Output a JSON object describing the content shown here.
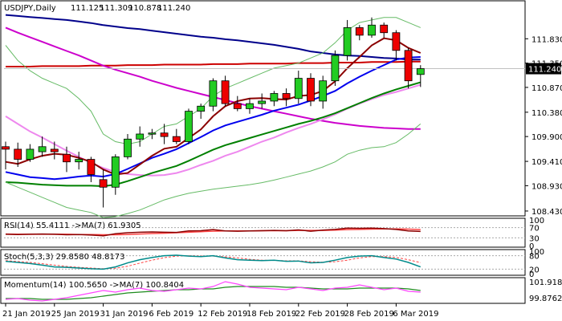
{
  "chart_data": {
    "type": "candlestick",
    "symbol_label": "USDJPY,Daily",
    "ohlc_label": [
      "111.125",
      "111.309",
      "110.878",
      "111.240"
    ],
    "current_price": 111.24,
    "current_price_label": "111.240",
    "price_axis": {
      "ylim": [
        108.35,
        112.5
      ],
      "ticks": [
        "111.830",
        "111.350",
        "110.870",
        "110.380",
        "109.900",
        "109.410",
        "108.930",
        "108.430"
      ]
    },
    "x_labels": [
      "21 Jan 2019",
      "25 Jan 2019",
      "31 Jan 2019",
      "6 Feb 2019",
      "12 Feb 2019",
      "18 Feb 2019",
      "22 Feb 2019",
      "28 Feb 2019",
      "6 Mar 2019"
    ],
    "x_label_bar_index": [
      0,
      4,
      8,
      12,
      16,
      20,
      24,
      28,
      32
    ],
    "candles": [
      {
        "o": 109.7,
        "h": 109.8,
        "l": 109.25,
        "c": 109.65
      },
      {
        "o": 109.65,
        "h": 109.78,
        "l": 109.3,
        "c": 109.45
      },
      {
        "o": 109.45,
        "h": 109.75,
        "l": 109.4,
        "c": 109.65
      },
      {
        "o": 109.6,
        "h": 109.9,
        "l": 109.5,
        "c": 109.7
      },
      {
        "o": 109.65,
        "h": 109.8,
        "l": 109.45,
        "c": 109.6
      },
      {
        "o": 109.55,
        "h": 109.7,
        "l": 109.2,
        "c": 109.4
      },
      {
        "o": 109.4,
        "h": 109.6,
        "l": 109.25,
        "c": 109.45
      },
      {
        "o": 109.45,
        "h": 109.5,
        "l": 109.0,
        "c": 109.15
      },
      {
        "o": 109.05,
        "h": 109.25,
        "l": 108.5,
        "c": 108.9
      },
      {
        "o": 108.9,
        "h": 109.55,
        "l": 108.75,
        "c": 109.5
      },
      {
        "o": 109.5,
        "h": 109.95,
        "l": 109.45,
        "c": 109.85
      },
      {
        "o": 109.85,
        "h": 110.1,
        "l": 109.7,
        "c": 109.95
      },
      {
        "o": 109.95,
        "h": 110.05,
        "l": 109.85,
        "c": 109.97
      },
      {
        "o": 109.97,
        "h": 110.15,
        "l": 109.75,
        "c": 109.9
      },
      {
        "o": 109.9,
        "h": 110.05,
        "l": 109.75,
        "c": 109.8
      },
      {
        "o": 109.8,
        "h": 110.45,
        "l": 109.75,
        "c": 110.4
      },
      {
        "o": 110.4,
        "h": 110.55,
        "l": 110.25,
        "c": 110.5
      },
      {
        "o": 110.5,
        "h": 111.05,
        "l": 110.4,
        "c": 111.0
      },
      {
        "o": 111.0,
        "h": 111.1,
        "l": 110.5,
        "c": 110.55
      },
      {
        "o": 110.55,
        "h": 110.7,
        "l": 110.4,
        "c": 110.45
      },
      {
        "o": 110.45,
        "h": 110.65,
        "l": 110.35,
        "c": 110.55
      },
      {
        "o": 110.55,
        "h": 110.75,
        "l": 110.45,
        "c": 110.6
      },
      {
        "o": 110.6,
        "h": 110.8,
        "l": 110.5,
        "c": 110.75
      },
      {
        "o": 110.75,
        "h": 110.85,
        "l": 110.5,
        "c": 110.65
      },
      {
        "o": 110.65,
        "h": 111.2,
        "l": 110.55,
        "c": 111.05
      },
      {
        "o": 111.05,
        "h": 111.15,
        "l": 110.5,
        "c": 110.6
      },
      {
        "o": 110.6,
        "h": 111.1,
        "l": 110.45,
        "c": 111.0
      },
      {
        "o": 111.0,
        "h": 111.6,
        "l": 110.9,
        "c": 111.5
      },
      {
        "o": 111.5,
        "h": 112.2,
        "l": 111.4,
        "c": 112.05
      },
      {
        "o": 112.05,
        "h": 112.1,
        "l": 111.8,
        "c": 111.9
      },
      {
        "o": 111.9,
        "h": 112.25,
        "l": 111.85,
        "c": 112.1
      },
      {
        "o": 112.1,
        "h": 112.15,
        "l": 111.85,
        "c": 111.95
      },
      {
        "o": 111.95,
        "h": 112.0,
        "l": 111.4,
        "c": 111.6
      },
      {
        "o": 111.6,
        "h": 111.65,
        "l": 110.85,
        "c": 111.0
      },
      {
        "o": 111.125,
        "h": 111.309,
        "l": 110.878,
        "c": 111.24
      }
    ],
    "ma_lines": [
      {
        "color": "#cc0000",
        "name": "",
        "values": [
          111.28,
          111.28,
          111.28,
          111.29,
          111.29,
          111.29,
          111.29,
          111.3,
          111.3,
          111.3,
          111.31,
          111.31,
          111.31,
          111.32,
          111.32,
          111.32,
          111.32,
          111.33,
          111.33,
          111.33,
          111.34,
          111.34,
          111.34,
          111.34,
          111.35,
          111.35,
          111.35,
          111.36,
          111.36,
          111.36,
          111.37,
          111.37,
          111.37,
          111.38,
          111.38
        ]
      },
      {
        "color": "#00008b",
        "name": "",
        "values": [
          112.3,
          112.28,
          112.26,
          112.24,
          112.22,
          112.2,
          112.17,
          112.14,
          112.1,
          112.07,
          112.04,
          112.02,
          111.99,
          111.96,
          111.93,
          111.9,
          111.87,
          111.85,
          111.82,
          111.8,
          111.77,
          111.74,
          111.71,
          111.67,
          111.63,
          111.58,
          111.55,
          111.52,
          111.5,
          111.49,
          111.47,
          111.45,
          111.44,
          111.42,
          111.42
        ]
      },
      {
        "color": "#cc00cc",
        "name": "",
        "values": [
          112.05,
          111.95,
          111.86,
          111.77,
          111.68,
          111.59,
          111.5,
          111.4,
          111.3,
          111.22,
          111.15,
          111.08,
          111.0,
          110.93,
          110.86,
          110.8,
          110.74,
          110.68,
          110.62,
          110.56,
          110.5,
          110.45,
          110.4,
          110.35,
          110.3,
          110.25,
          110.21,
          110.17,
          110.14,
          110.11,
          110.09,
          110.07,
          110.06,
          110.05,
          110.05
        ]
      },
      {
        "color": "#ee88ee",
        "name": "",
        "values": [
          110.3,
          110.15,
          110.0,
          109.88,
          109.75,
          109.62,
          109.5,
          109.38,
          109.28,
          109.2,
          109.16,
          109.14,
          109.13,
          109.14,
          109.18,
          109.25,
          109.34,
          109.42,
          109.52,
          109.6,
          109.7,
          109.8,
          109.88,
          109.98,
          110.07,
          110.15,
          110.24,
          110.34,
          110.45,
          110.55,
          110.64,
          110.72,
          110.78,
          110.85,
          110.92
        ]
      },
      {
        "color": "#0000ee",
        "name": "",
        "values": [
          109.2,
          109.15,
          109.1,
          109.08,
          109.06,
          109.08,
          109.11,
          109.13,
          109.11,
          109.16,
          109.26,
          109.37,
          109.48,
          109.56,
          109.65,
          109.77,
          109.89,
          110.02,
          110.12,
          110.19,
          110.26,
          110.33,
          110.41,
          110.47,
          110.53,
          110.61,
          110.7,
          110.8,
          110.95,
          111.08,
          111.2,
          111.31,
          111.42,
          111.46,
          111.47
        ]
      },
      {
        "color": "#8b0000",
        "name": "",
        "values": [
          109.4,
          109.36,
          109.45,
          109.52,
          109.56,
          109.54,
          109.48,
          109.4,
          109.25,
          109.15,
          109.18,
          109.35,
          109.52,
          109.66,
          109.7,
          109.87,
          110.04,
          110.3,
          110.5,
          110.6,
          110.65,
          110.66,
          110.64,
          110.63,
          110.7,
          110.72,
          110.8,
          110.99,
          111.25,
          111.47,
          111.7,
          111.84,
          111.8,
          111.65,
          111.55
        ]
      },
      {
        "color": "#008000",
        "name": "",
        "values": [
          109.0,
          108.99,
          108.97,
          108.95,
          108.94,
          108.93,
          108.93,
          108.93,
          108.92,
          108.95,
          109.02,
          109.1,
          109.18,
          109.25,
          109.32,
          109.42,
          109.53,
          109.64,
          109.73,
          109.8,
          109.87,
          109.94,
          110.01,
          110.08,
          110.15,
          110.21,
          110.28,
          110.36,
          110.46,
          110.56,
          110.66,
          110.75,
          110.83,
          110.9,
          110.97
        ]
      },
      {
        "color": "#66bb66",
        "name": "",
        "values": [
          111.7,
          111.4,
          111.2,
          111.05,
          110.95,
          110.85,
          110.65,
          110.4,
          109.95,
          109.8,
          109.75,
          109.8,
          109.95,
          110.1,
          110.15,
          110.3,
          110.45,
          110.7,
          110.85,
          110.95,
          111.05,
          111.15,
          111.25,
          111.3,
          111.35,
          111.45,
          111.55,
          111.75,
          112.0,
          112.15,
          112.2,
          112.25,
          112.25,
          112.15,
          112.05
        ]
      },
      {
        "color": "#66bb66",
        "name": "",
        "values": [
          109.0,
          108.9,
          108.8,
          108.7,
          108.6,
          108.5,
          108.45,
          108.4,
          108.3,
          108.32,
          108.38,
          108.45,
          108.55,
          108.65,
          108.72,
          108.78,
          108.82,
          108.86,
          108.89,
          108.92,
          108.95,
          108.99,
          109.04,
          109.1,
          109.16,
          109.22,
          109.3,
          109.4,
          109.55,
          109.63,
          109.68,
          109.7,
          109.78,
          109.95,
          110.15
        ]
      }
    ],
    "rsi": {
      "label": "RSI(14) 55.4111 ->MA(7) 61.9305",
      "levels": [
        "100",
        "70",
        "30",
        "0"
      ],
      "values": [
        44,
        43,
        44,
        45,
        44,
        42,
        43,
        41,
        38,
        46,
        50,
        52,
        53,
        52,
        51,
        57,
        58,
        62,
        57,
        56,
        57,
        58,
        59,
        58,
        61,
        56,
        60,
        63,
        68,
        67,
        68,
        66,
        63,
        57,
        55
      ],
      "ma": [
        45,
        44,
        44,
        44,
        44,
        44,
        43,
        43,
        42,
        42,
        43,
        45,
        47,
        48,
        50,
        52,
        54,
        56,
        57,
        57,
        57,
        58,
        58,
        58,
        59,
        59,
        59,
        60,
        62,
        63,
        64,
        65,
        65,
        64,
        62
      ]
    },
    "stoch": {
      "label": "Stoch(5,3,3) 29.8580 48.8173",
      "levels": [
        "100",
        "80",
        "20",
        "0"
      ],
      "k": [
        55,
        50,
        45,
        38,
        30,
        28,
        25,
        22,
        20,
        30,
        48,
        62,
        72,
        80,
        82,
        78,
        76,
        80,
        70,
        62,
        60,
        58,
        60,
        55,
        56,
        48,
        50,
        60,
        72,
        78,
        80,
        72,
        65,
        50,
        30
      ],
      "d": [
        58,
        54,
        50,
        44,
        38,
        32,
        28,
        25,
        22,
        24,
        33,
        47,
        60,
        71,
        78,
        80,
        78,
        78,
        75,
        70,
        64,
        60,
        59,
        57,
        57,
        53,
        51,
        53,
        60,
        70,
        76,
        76,
        72,
        62,
        49
      ]
    },
    "momentum": {
      "label": "Momentum(14) 100.5650 ->MA(7) 100.8404",
      "ticks": [
        "101.9181",
        "99.8762"
      ],
      "values": [
        99.7,
        99.8,
        99.6,
        99.5,
        99.7,
        99.9,
        100.2,
        100.5,
        100.8,
        100.6,
        100.9,
        101.1,
        100.8,
        100.7,
        100.9,
        101.1,
        101.0,
        101.3,
        101.9,
        101.6,
        101.2,
        101.1,
        101.0,
        100.9,
        101.2,
        101.0,
        100.8,
        101.1,
        101.2,
        101.5,
        101.2,
        100.9,
        101.1,
        100.7,
        100.6
      ],
      "ma": [
        99.8,
        99.8,
        99.8,
        99.7,
        99.7,
        99.7,
        99.8,
        99.9,
        100.1,
        100.3,
        100.5,
        100.6,
        100.7,
        100.8,
        100.9,
        100.9,
        101.0,
        101.0,
        101.2,
        101.3,
        101.3,
        101.3,
        101.3,
        101.2,
        101.2,
        101.1,
        101.0,
        101.0,
        101.0,
        101.1,
        101.1,
        101.1,
        101.1,
        101.0,
        100.8
      ]
    }
  }
}
